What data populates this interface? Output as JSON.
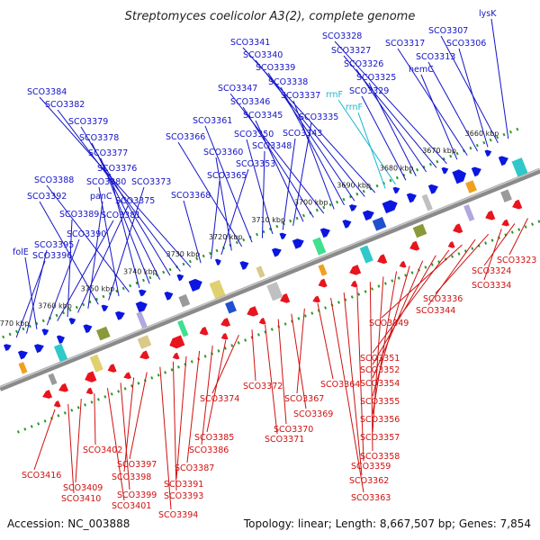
{
  "title": "Streptomyces coelicolor A3(2), complete genome",
  "footer": {
    "accession": "Accession: NC_003888",
    "summary": "Topology: linear; Length: 8,667,507 bp; Genes: 7,854"
  },
  "colors": {
    "forward_label": "#1414c8",
    "reverse_label": "#d01010",
    "rrna_label": "#17b8cf",
    "forward_arrow": "#0b16e0",
    "reverse_arrow": "#e8141e",
    "axis": "#8a8a8a",
    "tick": "#2a9a2a"
  },
  "scale_labels": [
    "3660 kbp",
    "3670 kbp",
    "3680 kbp",
    "3690 kbp",
    "3700 kbp",
    "3710 kbp",
    "3720 kbp",
    "3730 kbp",
    "3740 kbp",
    "3750 kbp",
    "3760 kbp",
    "3770 kbp"
  ],
  "top_genes": [
    {
      "label": "lysK",
      "strand": "forward"
    },
    {
      "label": "SCO3307",
      "strand": "forward"
    },
    {
      "label": "SCO3306",
      "strand": "forward"
    },
    {
      "label": "SCO3313",
      "strand": "forward"
    },
    {
      "label": "SCO3317",
      "strand": "forward"
    },
    {
      "label": "hemC",
      "strand": "forward"
    },
    {
      "label": "SCO3328",
      "strand": "forward"
    },
    {
      "label": "SCO3327",
      "strand": "forward"
    },
    {
      "label": "SCO3326",
      "strand": "forward"
    },
    {
      "label": "SCO3325",
      "strand": "forward"
    },
    {
      "label": "SCO3329",
      "strand": "forward"
    },
    {
      "label": "rrnF",
      "strand": "rrna"
    },
    {
      "label": "rrnF",
      "strand": "rrna"
    },
    {
      "label": "SCO3341",
      "strand": "forward"
    },
    {
      "label": "SCO3340",
      "strand": "forward"
    },
    {
      "label": "SCO3339",
      "strand": "forward"
    },
    {
      "label": "SCO3338",
      "strand": "forward"
    },
    {
      "label": "SCO3337",
      "strand": "forward"
    },
    {
      "label": "SCO3347",
      "strand": "forward"
    },
    {
      "label": "SCO3346",
      "strand": "forward"
    },
    {
      "label": "SCO3345",
      "strand": "forward"
    },
    {
      "label": "SCO3335",
      "strand": "forward"
    },
    {
      "label": "SCO3343",
      "strand": "forward"
    },
    {
      "label": "SCO3350",
      "strand": "forward"
    },
    {
      "label": "SCO3348",
      "strand": "forward"
    },
    {
      "label": "SCO3361",
      "strand": "forward"
    },
    {
      "label": "SCO3366",
      "strand": "forward"
    },
    {
      "label": "SCO3360",
      "strand": "forward"
    },
    {
      "label": "SCO3353",
      "strand": "forward"
    },
    {
      "label": "SCO3365",
      "strand": "forward"
    },
    {
      "label": "SCO3368",
      "strand": "forward"
    },
    {
      "label": "SCO3384",
      "strand": "forward"
    },
    {
      "label": "SCO3382",
      "strand": "forward"
    },
    {
      "label": "SCO3379",
      "strand": "forward"
    },
    {
      "label": "SCO3378",
      "strand": "forward"
    },
    {
      "label": "SCO3377",
      "strand": "forward"
    },
    {
      "label": "SCO3376",
      "strand": "forward"
    },
    {
      "label": "SCO3388",
      "strand": "forward"
    },
    {
      "label": "SCO3380",
      "strand": "forward"
    },
    {
      "label": "SCO3373",
      "strand": "forward"
    },
    {
      "label": "SCO3392",
      "strand": "forward"
    },
    {
      "label": "panC",
      "strand": "forward"
    },
    {
      "label": "SCO3375",
      "strand": "forward"
    },
    {
      "label": "SCO3389",
      "strand": "forward"
    },
    {
      "label": "SCO3381",
      "strand": "forward"
    },
    {
      "label": "SCO3390",
      "strand": "forward"
    },
    {
      "label": "folE",
      "strand": "forward"
    },
    {
      "label": "SCO3395",
      "strand": "forward"
    },
    {
      "label": "SCO3396",
      "strand": "forward"
    }
  ],
  "bottom_genes": [
    {
      "label": "SCO3323",
      "strand": "reverse"
    },
    {
      "label": "SCO3324",
      "strand": "reverse"
    },
    {
      "label": "SCO3334",
      "strand": "reverse"
    },
    {
      "label": "SCO3336",
      "strand": "reverse"
    },
    {
      "label": "SCO3344",
      "strand": "reverse"
    },
    {
      "label": "SCO3349",
      "strand": "reverse"
    },
    {
      "label": "SCO3351",
      "strand": "reverse"
    },
    {
      "label": "SCO3352",
      "strand": "reverse"
    },
    {
      "label": "SCO3354",
      "strand": "reverse"
    },
    {
      "label": "SCO3355",
      "strand": "reverse"
    },
    {
      "label": "SCO3356",
      "strand": "reverse"
    },
    {
      "label": "SCO3357",
      "strand": "reverse"
    },
    {
      "label": "SCO3358",
      "strand": "reverse"
    },
    {
      "label": "SCO3359",
      "strand": "reverse"
    },
    {
      "label": "SCO3362",
      "strand": "reverse"
    },
    {
      "label": "SCO3363",
      "strand": "reverse"
    },
    {
      "label": "SCO3364",
      "strand": "reverse"
    },
    {
      "label": "SCO3367",
      "strand": "reverse"
    },
    {
      "label": "SCO3369",
      "strand": "reverse"
    },
    {
      "label": "SCO3370",
      "strand": "reverse"
    },
    {
      "label": "SCO3371",
      "strand": "reverse"
    },
    {
      "label": "SCO3372",
      "strand": "reverse"
    },
    {
      "label": "SCO3374",
      "strand": "reverse"
    },
    {
      "label": "SCO3385",
      "strand": "reverse"
    },
    {
      "label": "SCO3386",
      "strand": "reverse"
    },
    {
      "label": "SCO3387",
      "strand": "reverse"
    },
    {
      "label": "SCO3391",
      "strand": "reverse"
    },
    {
      "label": "SCO3393",
      "strand": "reverse"
    },
    {
      "label": "SCO3394",
      "strand": "reverse"
    },
    {
      "label": "SCO3397",
      "strand": "reverse"
    },
    {
      "label": "SCO3398",
      "strand": "reverse"
    },
    {
      "label": "SCO3399",
      "strand": "reverse"
    },
    {
      "label": "SCO3401",
      "strand": "reverse"
    },
    {
      "label": "SCO3402",
      "strand": "reverse"
    },
    {
      "label": "SCO3409",
      "strand": "reverse"
    },
    {
      "label": "SCO3410",
      "strand": "reverse"
    },
    {
      "label": "SCO3416",
      "strand": "reverse"
    }
  ]
}
